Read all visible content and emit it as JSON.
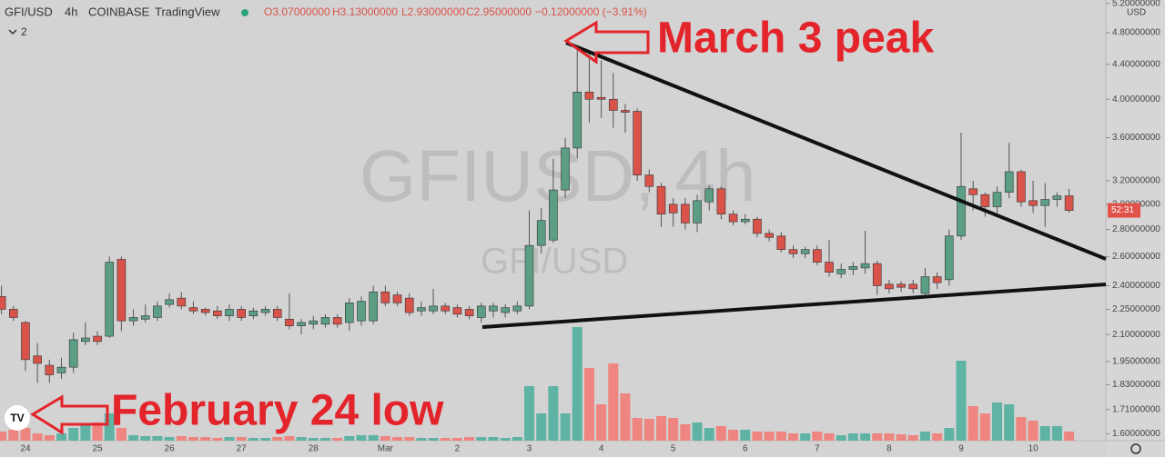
{
  "chart_data": {
    "type": "candlestick",
    "symbol": "GFI/USD",
    "interval": "4h",
    "exchange": "COINBASE",
    "source": "TradingView",
    "ohlc_labels": [
      "O3.07000000",
      "H3.13000000",
      "L2.93000000",
      "C2.95000000",
      "−0.12000000 (−3.91%)"
    ],
    "indicator_count": "2",
    "watermark": "GFIUSD, 4h",
    "watermark_sub": "GFI/USD",
    "annotations": [
      "March 3 peak",
      "February 24 low"
    ],
    "countdown": "52:31",
    "currency": "USD",
    "log_scale": true,
    "up_color": "#5b9e83",
    "down_color": "#d9534a",
    "up_volume_color": "#5fb3a5",
    "down_volume_color": "#ee8580",
    "ylim": [
      1.57,
      5.25
    ],
    "yticks": [
      {
        "value": 5.2,
        "label": "5.20000000"
      },
      {
        "value": 4.8,
        "label": "4.80000000"
      },
      {
        "value": 4.4,
        "label": "4.40000000"
      },
      {
        "value": 4.0,
        "label": "4.00000000"
      },
      {
        "value": 3.6,
        "label": "3.60000000"
      },
      {
        "value": 3.2,
        "label": "3.20000000"
      },
      {
        "value": 3.0,
        "label": "3.00000000"
      },
      {
        "value": 2.8,
        "label": "2.80000000"
      },
      {
        "value": 2.6,
        "label": "2.60000000"
      },
      {
        "value": 2.4,
        "label": "2.40000000"
      },
      {
        "value": 2.25,
        "label": "2.25000000"
      },
      {
        "value": 2.1,
        "label": "2.10000000"
      },
      {
        "value": 1.95,
        "label": "1.95000000"
      },
      {
        "value": 1.83,
        "label": "1.83000000"
      },
      {
        "value": 1.71,
        "label": "1.71000000"
      },
      {
        "value": 1.6,
        "label": "1.60000000"
      }
    ],
    "categories": [
      null,
      null,
      "24",
      null,
      null,
      null,
      null,
      null,
      "25",
      null,
      null,
      null,
      null,
      null,
      "26",
      null,
      null,
      null,
      null,
      null,
      "27",
      null,
      null,
      null,
      null,
      null,
      "28",
      null,
      null,
      null,
      null,
      null,
      "Mar",
      null,
      null,
      null,
      null,
      null,
      "2",
      null,
      null,
      null,
      null,
      null,
      "3",
      null,
      null,
      null,
      null,
      null,
      "4",
      null,
      null,
      null,
      null,
      null,
      "5",
      null,
      null,
      null,
      null,
      null,
      "6",
      null,
      null,
      null,
      null,
      null,
      "7",
      null,
      null,
      null,
      null,
      null,
      "8",
      null,
      null,
      null,
      null,
      null,
      "9",
      null,
      null,
      null,
      null,
      null,
      "10",
      null,
      null,
      null
    ],
    "candle_fields": [
      "open",
      "high",
      "low",
      "close",
      "volume"
    ],
    "candles": [
      [
        2.33,
        2.4,
        2.22,
        2.25,
        10
      ],
      [
        2.25,
        2.27,
        2.18,
        2.2,
        12
      ],
      [
        2.17,
        2.18,
        1.9,
        1.96,
        14
      ],
      [
        1.98,
        2.05,
        1.84,
        1.94,
        8
      ],
      [
        1.93,
        1.96,
        1.84,
        1.88,
        6
      ],
      [
        1.89,
        1.97,
        1.86,
        1.92,
        8
      ],
      [
        1.92,
        2.11,
        1.89,
        2.07,
        14
      ],
      [
        2.06,
        2.17,
        2.04,
        2.08,
        18
      ],
      [
        2.09,
        2.12,
        2.04,
        2.06,
        20
      ],
      [
        2.09,
        2.6,
        2.08,
        2.56,
        30
      ],
      [
        2.58,
        2.6,
        2.12,
        2.18,
        14
      ],
      [
        2.18,
        2.25,
        2.15,
        2.2,
        6
      ],
      [
        2.19,
        2.28,
        2.17,
        2.21,
        5
      ],
      [
        2.2,
        2.3,
        2.18,
        2.27,
        5
      ],
      [
        2.28,
        2.35,
        2.26,
        2.31,
        4
      ],
      [
        2.32,
        2.36,
        2.25,
        2.27,
        5
      ],
      [
        2.26,
        2.3,
        2.22,
        2.24,
        4
      ],
      [
        2.25,
        2.26,
        2.21,
        2.23,
        4
      ],
      [
        2.24,
        2.27,
        2.19,
        2.21,
        3
      ],
      [
        2.21,
        2.28,
        2.18,
        2.25,
        4
      ],
      [
        2.25,
        2.27,
        2.18,
        2.2,
        4
      ],
      [
        2.21,
        2.26,
        2.19,
        2.24,
        3
      ],
      [
        2.23,
        2.27,
        2.21,
        2.25,
        3
      ],
      [
        2.25,
        2.27,
        2.18,
        2.2,
        4
      ],
      [
        2.19,
        2.35,
        2.13,
        2.15,
        5
      ],
      [
        2.15,
        2.19,
        2.1,
        2.17,
        4
      ],
      [
        2.16,
        2.21,
        2.13,
        2.18,
        3
      ],
      [
        2.16,
        2.22,
        2.14,
        2.2,
        3
      ],
      [
        2.2,
        2.22,
        2.14,
        2.16,
        3
      ],
      [
        2.17,
        2.32,
        2.12,
        2.29,
        5
      ],
      [
        2.18,
        2.33,
        2.15,
        2.3,
        6
      ],
      [
        2.18,
        2.4,
        2.16,
        2.36,
        6
      ],
      [
        2.36,
        2.4,
        2.27,
        2.29,
        5
      ],
      [
        2.34,
        2.36,
        2.27,
        2.29,
        4
      ],
      [
        2.32,
        2.35,
        2.21,
        2.23,
        4
      ],
      [
        2.24,
        2.3,
        2.21,
        2.26,
        3
      ],
      [
        2.24,
        2.38,
        2.22,
        2.27,
        3
      ],
      [
        2.27,
        2.29,
        2.22,
        2.24,
        3
      ],
      [
        2.26,
        2.28,
        2.2,
        2.22,
        3
      ],
      [
        2.25,
        2.27,
        2.19,
        2.21,
        4
      ],
      [
        2.2,
        2.29,
        2.17,
        2.27,
        4
      ],
      [
        2.24,
        2.29,
        2.2,
        2.27,
        4
      ],
      [
        2.23,
        2.28,
        2.2,
        2.26,
        3
      ],
      [
        2.24,
        2.3,
        2.22,
        2.27,
        4
      ],
      [
        2.27,
        2.95,
        2.25,
        2.68,
        60
      ],
      [
        2.68,
        2.97,
        2.62,
        2.87,
        30
      ],
      [
        2.72,
        3.4,
        2.7,
        3.12,
        60
      ],
      [
        3.12,
        3.6,
        3.05,
        3.5,
        30
      ],
      [
        3.5,
        4.62,
        3.4,
        4.08,
        125
      ],
      [
        4.08,
        4.55,
        3.75,
        4.0,
        80
      ],
      [
        4.02,
        4.45,
        3.8,
        4.0,
        40
      ],
      [
        4.0,
        4.3,
        3.7,
        3.88,
        85
      ],
      [
        3.88,
        3.95,
        3.65,
        3.86,
        52
      ],
      [
        3.87,
        3.9,
        3.2,
        3.25,
        25
      ],
      [
        3.25,
        3.3,
        3.1,
        3.15,
        24
      ],
      [
        3.15,
        3.18,
        2.82,
        2.92,
        27
      ],
      [
        3.0,
        3.05,
        2.82,
        2.93,
        25
      ],
      [
        3.0,
        3.05,
        2.8,
        2.85,
        18
      ],
      [
        2.85,
        3.08,
        2.78,
        3.03,
        20
      ],
      [
        3.02,
        3.16,
        2.95,
        3.13,
        14
      ],
      [
        3.13,
        3.15,
        2.88,
        2.92,
        16
      ],
      [
        2.92,
        2.95,
        2.83,
        2.86,
        12
      ],
      [
        2.86,
        2.92,
        2.84,
        2.88,
        12
      ],
      [
        2.88,
        2.9,
        2.74,
        2.77,
        10
      ],
      [
        2.77,
        2.8,
        2.71,
        2.74,
        10
      ],
      [
        2.75,
        2.78,
        2.63,
        2.65,
        10
      ],
      [
        2.65,
        2.68,
        2.59,
        2.62,
        8
      ],
      [
        2.62,
        2.67,
        2.59,
        2.65,
        8
      ],
      [
        2.65,
        2.68,
        2.54,
        2.56,
        10
      ],
      [
        2.56,
        2.72,
        2.46,
        2.49,
        8
      ],
      [
        2.48,
        2.55,
        2.45,
        2.51,
        6
      ],
      [
        2.51,
        2.56,
        2.47,
        2.53,
        8
      ],
      [
        2.52,
        2.79,
        2.48,
        2.55,
        8
      ],
      [
        2.55,
        2.57,
        2.34,
        2.4,
        8
      ],
      [
        2.41,
        2.44,
        2.35,
        2.38,
        8
      ],
      [
        2.41,
        2.43,
        2.36,
        2.39,
        7
      ],
      [
        2.41,
        2.44,
        2.35,
        2.38,
        6
      ],
      [
        2.35,
        2.52,
        2.34,
        2.46,
        10
      ],
      [
        2.46,
        2.49,
        2.38,
        2.42,
        8
      ],
      [
        2.44,
        2.8,
        2.4,
        2.75,
        14
      ],
      [
        2.75,
        3.65,
        2.72,
        3.15,
        88
      ],
      [
        3.13,
        3.2,
        2.95,
        3.08,
        38
      ],
      [
        3.08,
        3.1,
        2.9,
        2.98,
        30
      ],
      [
        2.98,
        3.15,
        2.93,
        3.1,
        42
      ],
      [
        3.1,
        3.55,
        3.05,
        3.28,
        40
      ],
      [
        3.28,
        3.3,
        2.98,
        3.02,
        26
      ],
      [
        3.03,
        3.2,
        2.93,
        2.99,
        22
      ],
      [
        2.99,
        3.18,
        2.82,
        3.04,
        16
      ],
      [
        3.04,
        3.1,
        2.98,
        3.07,
        16
      ],
      [
        3.07,
        3.13,
        2.93,
        2.95,
        10
      ]
    ]
  }
}
